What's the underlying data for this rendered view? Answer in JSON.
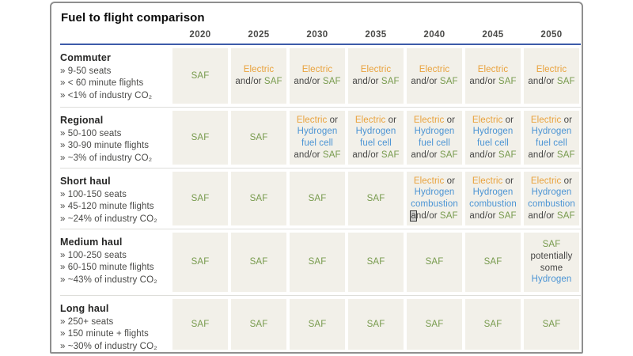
{
  "chart_data": {
    "type": "table",
    "title": "Fuel to flight comparison",
    "columns": [
      "2020",
      "2025",
      "2030",
      "2035",
      "2040",
      "2045",
      "2050"
    ],
    "colors": {
      "saf": "#789B4E",
      "electric": "#E9A23C",
      "hydrogen": "#4B94D4",
      "text": "#464645",
      "cell_bg": "#F2F0E9",
      "header_line": "#3D5BA9"
    },
    "rows": [
      {
        "category": "Commuter",
        "details": [
          "» 9-50 seats",
          "» < 60 minute flights",
          "» <1% of industry CO₂"
        ],
        "values": [
          "SAF",
          "Electric and/or SAF",
          "Electric and/or SAF",
          "Electric and/or SAF",
          "Electric and/or SAF",
          "Electric and/or SAF",
          "Electric and/or SAF"
        ],
        "cells": [
          [
            [
              [
                "SAF",
                "saf"
              ]
            ]
          ],
          [
            [
              [
                "Electric",
                "electric"
              ]
            ],
            [
              [
                "and/or ",
                "text"
              ],
              [
                "SAF",
                "saf"
              ]
            ]
          ],
          [
            [
              [
                "Electric",
                "electric"
              ]
            ],
            [
              [
                "and/or ",
                "text"
              ],
              [
                "SAF",
                "saf"
              ]
            ]
          ],
          [
            [
              [
                "Electric",
                "electric"
              ]
            ],
            [
              [
                "and/or ",
                "text"
              ],
              [
                "SAF",
                "saf"
              ]
            ]
          ],
          [
            [
              [
                "Electric",
                "electric"
              ]
            ],
            [
              [
                "and/or ",
                "text"
              ],
              [
                "SAF",
                "saf"
              ]
            ]
          ],
          [
            [
              [
                "Electric",
                "electric"
              ]
            ],
            [
              [
                "and/or ",
                "text"
              ],
              [
                "SAF",
                "saf"
              ]
            ]
          ],
          [
            [
              [
                "Electric",
                "electric"
              ]
            ],
            [
              [
                "and/or ",
                "text"
              ],
              [
                "SAF",
                "saf"
              ]
            ]
          ]
        ]
      },
      {
        "category": "Regional",
        "details": [
          "» 50-100 seats",
          "» 30-90 minute flights",
          "» ~3% of industry CO₂"
        ],
        "values": [
          "SAF",
          "SAF",
          "Electric or Hydrogen fuel cell and/or SAF",
          "Electric or Hydrogen fuel cell and/or SAF",
          "Electric or Hydrogen fuel cell and/or SAF",
          "Electric or Hydrogen fuel cell and/or SAF",
          "Electric or Hydrogen fuel cell and/or SAF"
        ],
        "cells": [
          [
            [
              [
                "SAF",
                "saf"
              ]
            ]
          ],
          [
            [
              [
                "SAF",
                "saf"
              ]
            ]
          ],
          [
            [
              [
                "Electric",
                "electric"
              ],
              [
                " or",
                "text"
              ]
            ],
            [
              [
                "Hydrogen",
                "hydrogen"
              ]
            ],
            [
              [
                "fuel cell",
                "hydrogen"
              ]
            ],
            [
              [
                "and/or ",
                "text"
              ],
              [
                "SAF",
                "saf"
              ]
            ]
          ],
          [
            [
              [
                "Electric",
                "electric"
              ],
              [
                " or",
                "text"
              ]
            ],
            [
              [
                "Hydrogen",
                "hydrogen"
              ]
            ],
            [
              [
                "fuel cell",
                "hydrogen"
              ]
            ],
            [
              [
                "and/or ",
                "text"
              ],
              [
                "SAF",
                "saf"
              ]
            ]
          ],
          [
            [
              [
                "Electric",
                "electric"
              ],
              [
                " or",
                "text"
              ]
            ],
            [
              [
                "Hydrogen",
                "hydrogen"
              ]
            ],
            [
              [
                "fuel cell",
                "hydrogen"
              ]
            ],
            [
              [
                "and/or ",
                "text"
              ],
              [
                "SAF",
                "saf"
              ]
            ]
          ],
          [
            [
              [
                "Electric",
                "electric"
              ],
              [
                " or",
                "text"
              ]
            ],
            [
              [
                "Hydrogen",
                "hydrogen"
              ]
            ],
            [
              [
                "fuel cell",
                "hydrogen"
              ]
            ],
            [
              [
                "and/or ",
                "text"
              ],
              [
                "SAF",
                "saf"
              ]
            ]
          ],
          [
            [
              [
                "Electric",
                "electric"
              ],
              [
                " or",
                "text"
              ]
            ],
            [
              [
                "Hydrogen",
                "hydrogen"
              ]
            ],
            [
              [
                "fuel cell",
                "hydrogen"
              ]
            ],
            [
              [
                "and/or ",
                "text"
              ],
              [
                "SAF",
                "saf"
              ]
            ]
          ]
        ]
      },
      {
        "category": "Short haul",
        "details": [
          "» 100-150 seats",
          "» 45-120 minute flights",
          "» ~24% of industry CO₂"
        ],
        "values": [
          "SAF",
          "SAF",
          "SAF",
          "SAF",
          "Electric or Hydrogen combustion and/or SAF",
          "Electric or Hydrogen combustion and/or SAF",
          "Electric or Hydrogen combustion and/or SAF"
        ],
        "cells": [
          [
            [
              [
                "SAF",
                "saf"
              ]
            ]
          ],
          [
            [
              [
                "SAF",
                "saf"
              ]
            ]
          ],
          [
            [
              [
                "SAF",
                "saf"
              ]
            ]
          ],
          [
            [
              [
                "SAF",
                "saf"
              ]
            ]
          ],
          [
            [
              [
                "Electric",
                "electric"
              ],
              [
                " or",
                "text"
              ]
            ],
            [
              [
                "Hydrogen",
                "hydrogen"
              ]
            ],
            [
              [
                "combustion",
                "hydrogen"
              ]
            ],
            [
              [
                "a",
                "text",
                "cursor"
              ],
              [
                "nd/or ",
                "text"
              ],
              [
                "SAF",
                "saf"
              ]
            ]
          ],
          [
            [
              [
                "Electric",
                "electric"
              ],
              [
                " or",
                "text"
              ]
            ],
            [
              [
                "Hydrogen",
                "hydrogen"
              ]
            ],
            [
              [
                "combustion",
                "hydrogen"
              ]
            ],
            [
              [
                "and/or ",
                "text"
              ],
              [
                "SAF",
                "saf"
              ]
            ]
          ],
          [
            [
              [
                "Electric",
                "electric"
              ],
              [
                " or",
                "text"
              ]
            ],
            [
              [
                "Hydrogen",
                "hydrogen"
              ]
            ],
            [
              [
                "combustion",
                "hydrogen"
              ]
            ],
            [
              [
                "and/or ",
                "text"
              ],
              [
                "SAF",
                "saf"
              ]
            ]
          ]
        ]
      },
      {
        "category": "Medium haul",
        "details": [
          "» 100-250 seats",
          "» 60-150 minute flights",
          "» ~43% of industry CO₂"
        ],
        "values": [
          "SAF",
          "SAF",
          "SAF",
          "SAF",
          "SAF",
          "SAF",
          "SAF potentially some Hydrogen"
        ],
        "cells": [
          [
            [
              [
                "SAF",
                "saf"
              ]
            ]
          ],
          [
            [
              [
                "SAF",
                "saf"
              ]
            ]
          ],
          [
            [
              [
                "SAF",
                "saf"
              ]
            ]
          ],
          [
            [
              [
                "SAF",
                "saf"
              ]
            ]
          ],
          [
            [
              [
                "SAF",
                "saf"
              ]
            ]
          ],
          [
            [
              [
                "SAF",
                "saf"
              ]
            ]
          ],
          [
            [
              [
                "SAF",
                "saf"
              ]
            ],
            [
              [
                "potentially",
                "text"
              ]
            ],
            [
              [
                "some",
                "text"
              ]
            ],
            [
              [
                "Hydrogen",
                "hydrogen"
              ]
            ]
          ]
        ]
      },
      {
        "category": "Long haul",
        "details": [
          "» 250+ seats",
          "» 150 minute + flights",
          "» ~30% of industry CO₂"
        ],
        "values": [
          "SAF",
          "SAF",
          "SAF",
          "SAF",
          "SAF",
          "SAF",
          "SAF"
        ],
        "cells": [
          [
            [
              [
                "SAF",
                "saf"
              ]
            ]
          ],
          [
            [
              [
                "SAF",
                "saf"
              ]
            ]
          ],
          [
            [
              [
                "SAF",
                "saf"
              ]
            ]
          ],
          [
            [
              [
                "SAF",
                "saf"
              ]
            ]
          ],
          [
            [
              [
                "SAF",
                "saf"
              ]
            ]
          ],
          [
            [
              [
                "SAF",
                "saf"
              ]
            ]
          ],
          [
            [
              [
                "SAF",
                "saf"
              ]
            ]
          ]
        ]
      }
    ]
  }
}
